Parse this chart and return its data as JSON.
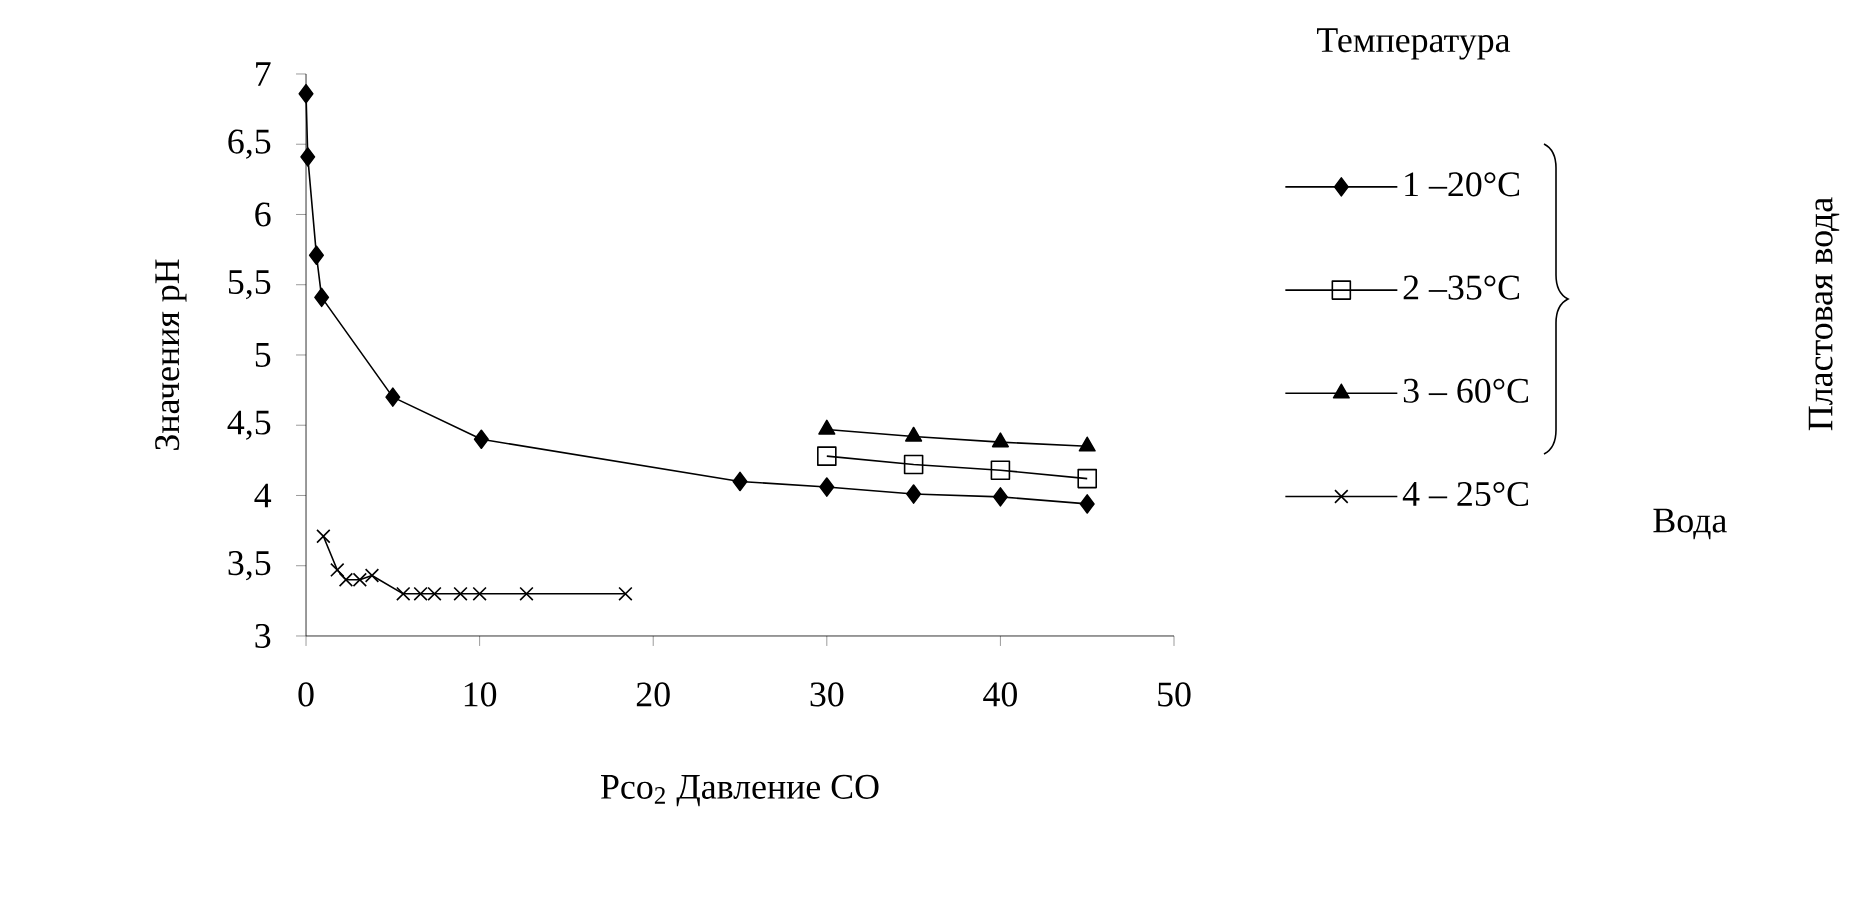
{
  "chart_data": {
    "type": "line",
    "xlabel": "Pco$_{2}$  Давление СО",
    "ylabel": "Значения pH",
    "legend_title": "Температура",
    "legend": "right",
    "grid": false,
    "line_style": "solid",
    "xlim": [
      0,
      50
    ],
    "xticks": [
      0,
      10,
      20,
      30,
      40,
      50
    ],
    "ylim": [
      3,
      7
    ],
    "yticks": [
      3,
      {
        "value": 3.5,
        "label": "3,5"
      },
      4,
      {
        "value": 4.5,
        "label": "4,5"
      },
      5,
      {
        "value": 5.5,
        "label": "5,5"
      },
      6,
      {
        "value": 6.5,
        "label": "6,5"
      },
      7
    ],
    "annotations": [
      "Пластовая вода",
      "Вода"
    ],
    "series": [
      {
        "name": "1 –20°C",
        "color": "#000000",
        "marker": "diamond",
        "x": [
          0,
          0.1,
          0.6,
          0.9,
          5,
          10.1,
          25,
          30,
          35,
          40,
          45
        ],
        "values": [
          6.86,
          6.41,
          5.71,
          5.41,
          4.7,
          4.4,
          4.1,
          4.06,
          4.01,
          3.99,
          3.94
        ]
      },
      {
        "name": "2 –35°C",
        "color": "#000000",
        "marker": "square",
        "x": [
          30,
          35,
          40,
          45
        ],
        "values": [
          4.28,
          4.22,
          4.18,
          4.12
        ]
      },
      {
        "name": "3 – 60°C",
        "color": "#000000",
        "marker": "triangle",
        "x": [
          30,
          35,
          40,
          45
        ],
        "values": [
          4.47,
          4.42,
          4.38,
          4.35
        ]
      },
      {
        "name": "4 – 25°C",
        "color": "#000000",
        "marker": "cross",
        "x": [
          1,
          1.8,
          2.3,
          3.1,
          3.8,
          5.6,
          6.6,
          7.4,
          8.9,
          10,
          12.7,
          18.4
        ],
        "values": [
          3.71,
          3.47,
          3.4,
          3.4,
          3.43,
          3.3,
          3.3,
          3.3,
          3.3,
          3.3,
          3.3,
          3.3
        ]
      }
    ]
  }
}
